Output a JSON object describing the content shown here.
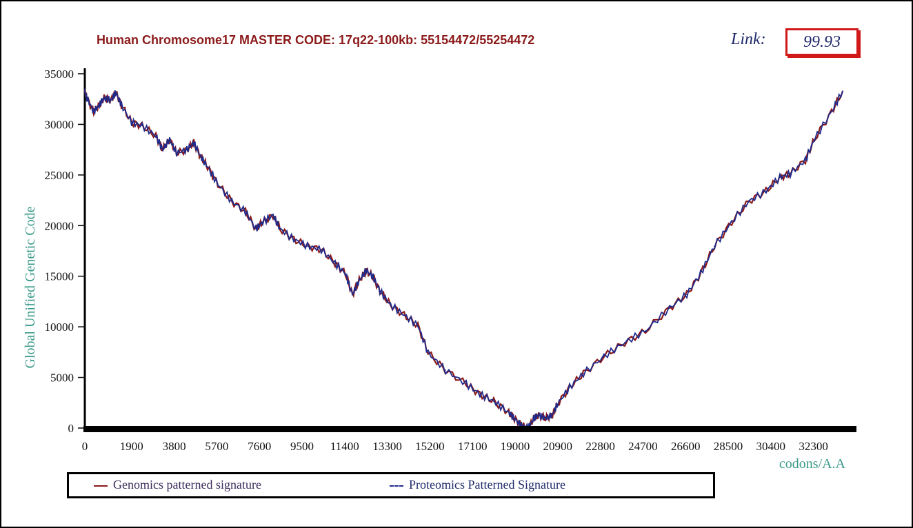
{
  "header": {
    "title": "Human Chromosome17 MASTER CODE: 17q22-100kb: 55154472/55254472",
    "link_label": "Link:",
    "link_value": "99.93"
  },
  "chart_data": {
    "type": "line",
    "title": "Human Chromosome17 MASTER CODE: 17q22-100kb: 55154472/55254472",
    "xlabel": "codons/A.A",
    "ylabel": "Global Unified Genetic Code",
    "xlim": [
      0,
      34500
    ],
    "ylim": [
      0,
      35000
    ],
    "x_ticks": [
      "0",
      "1900",
      "3800",
      "5700",
      "7600",
      "9500",
      "11400",
      "13300",
      "15200",
      "17100",
      "19000",
      "20900",
      "22800",
      "24700",
      "26600",
      "28500",
      "30400",
      "32300"
    ],
    "y_ticks": [
      "0",
      "5000",
      "10000",
      "15000",
      "20000",
      "25000",
      "30000",
      "35000"
    ],
    "grid": false,
    "legend_position": "bottom",
    "x": [
      0,
      92,
      400,
      646,
      862,
      1169,
      1385,
      1631,
      2092,
      2554,
      3169,
      3477,
      3785,
      4092,
      4554,
      4862,
      5169,
      5477,
      5938,
      6554,
      7169,
      7631,
      7938,
      8400,
      8708,
      9323,
      9938,
      10554,
      11169,
      11631,
      11938,
      12246,
      12554,
      12861,
      13169,
      13631,
      14246,
      14861,
      15323,
      16092,
      17015,
      17631,
      18246,
      18861,
      19169,
      19477,
      19784,
      20031,
      20246,
      20554,
      20861,
      21077,
      21631,
      22246,
      23169,
      24092,
      25015,
      26092,
      26861,
      27477,
      28092,
      28861,
      29631,
      30400,
      31015,
      31477,
      32154,
      32554,
      33323,
      33815
    ],
    "series": [
      {
        "name": "Genomics patterned signature",
        "color": "#8b1a1a",
        "values": [
          33220,
          32600,
          31245,
          31925,
          32600,
          32400,
          33150,
          31925,
          30180,
          29880,
          28860,
          27500,
          28520,
          27160,
          27500,
          28180,
          26820,
          25800,
          24100,
          22400,
          21380,
          19680,
          20350,
          21030,
          19680,
          18650,
          17970,
          17630,
          16270,
          15250,
          13200,
          14570,
          15590,
          14910,
          13550,
          12190,
          11160,
          10140,
          7420,
          5720,
          4360,
          3340,
          2650,
          1630,
          950,
          270,
          0,
          950,
          1290,
          950,
          1290,
          2310,
          4020,
          5380,
          7080,
          8440,
          9600,
          11840,
          13200,
          15250,
          17970,
          20350,
          22400,
          23420,
          24780,
          25120,
          26480,
          28520,
          31245,
          33290
        ]
      },
      {
        "name": "Proteomics Patterned Signature",
        "color": "#1f2a8b",
        "values": [
          33220,
          32600,
          31245,
          31925,
          32600,
          32400,
          33150,
          31925,
          30180,
          29880,
          28860,
          27500,
          28520,
          27160,
          27500,
          28180,
          26820,
          25800,
          24100,
          22400,
          21380,
          19680,
          20350,
          21030,
          19680,
          18650,
          17970,
          17630,
          16270,
          15250,
          13200,
          14570,
          15590,
          14910,
          13550,
          12190,
          11160,
          10140,
          7420,
          5720,
          4360,
          3340,
          2650,
          1630,
          950,
          270,
          0,
          950,
          1290,
          950,
          1290,
          2310,
          4020,
          5380,
          7080,
          8440,
          9600,
          11840,
          13200,
          15250,
          17970,
          20350,
          22400,
          23420,
          24780,
          25120,
          26480,
          28520,
          31245,
          33290
        ]
      }
    ]
  },
  "legend": {
    "genomics": "Genomics patterned signature",
    "proteomics": "Proteomics Patterned Signature"
  }
}
